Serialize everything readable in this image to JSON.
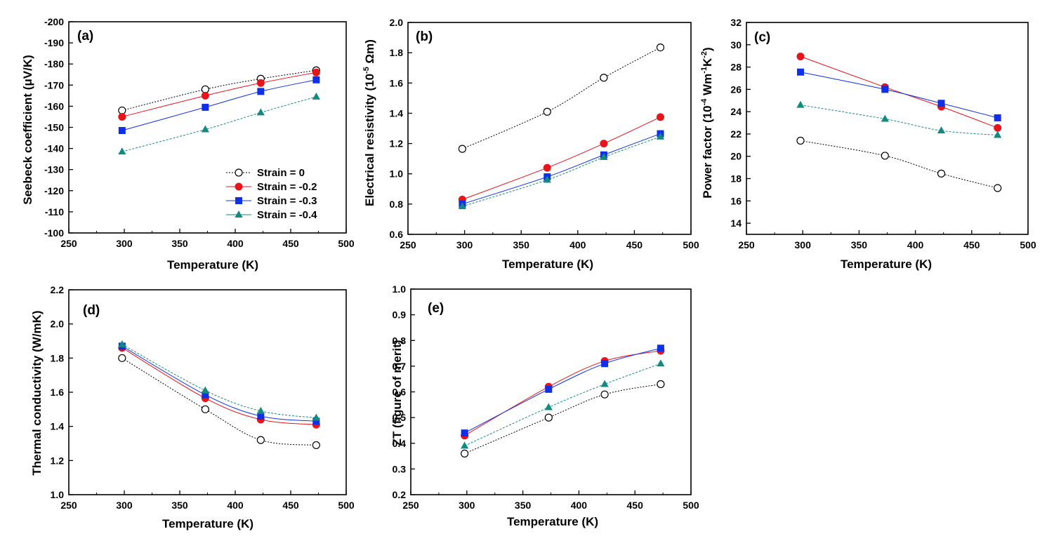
{
  "legend": {
    "series": [
      {
        "name": "Strain = 0",
        "color": "#000000",
        "marker": "circle-open"
      },
      {
        "name": "Strain = -0.2",
        "color": "#e8141b",
        "marker": "circle"
      },
      {
        "name": "Strain = -0.3",
        "color": "#1030e8",
        "marker": "square"
      },
      {
        "name": "Strain = -0.4",
        "color": "#138a80",
        "marker": "triangle"
      }
    ]
  },
  "chart_data": [
    {
      "panel": "(a)",
      "type": "line",
      "title": "",
      "xlabel": "Temperature (K)",
      "ylabel": "Seebeck coefficient (μV/K)",
      "xlim": [
        250,
        500
      ],
      "xticks": [
        250,
        300,
        350,
        400,
        450,
        500
      ],
      "ylim": [
        -100,
        -200
      ],
      "yticks": [
        -100,
        -110,
        -120,
        -130,
        -140,
        -150,
        -160,
        -170,
        -180,
        -190,
        -200
      ],
      "x": [
        298,
        373,
        423,
        473
      ],
      "series": [
        {
          "name": "Strain = 0",
          "values": [
            -158,
            -168,
            -173,
            -177
          ]
        },
        {
          "name": "Strain = -0.2",
          "values": [
            -155,
            -165,
            -171,
            -176
          ]
        },
        {
          "name": "Strain = -0.3",
          "values": [
            -148.5,
            -159.5,
            -167,
            -172.5
          ]
        },
        {
          "name": "Strain = -0.4",
          "values": [
            -138.5,
            -149,
            -157,
            -164.5
          ]
        }
      ]
    },
    {
      "panel": "(b)",
      "type": "line",
      "title": "",
      "xlabel": "Temperature (K)",
      "ylabel_main": "Electrical resistivity (10",
      "ylabel_sup": "-5",
      "ylabel_tail": " Ωm)",
      "xlim": [
        250,
        500
      ],
      "xticks": [
        250,
        300,
        350,
        400,
        450,
        500
      ],
      "ylim": [
        0.6,
        2.0
      ],
      "yticks": [
        "0.6",
        "0.8",
        "1.0",
        "1.2",
        "1.4",
        "1.6",
        "1.8",
        "2.0"
      ],
      "x": [
        298,
        373,
        423,
        473
      ],
      "series": [
        {
          "name": "Strain = 0",
          "values": [
            1.165,
            1.41,
            1.635,
            1.835
          ]
        },
        {
          "name": "Strain = -0.2",
          "values": [
            0.83,
            1.04,
            1.2,
            1.375
          ]
        },
        {
          "name": "Strain = -0.3",
          "values": [
            0.8,
            0.98,
            1.125,
            1.265
          ]
        },
        {
          "name": "Strain = -0.4",
          "values": [
            0.785,
            0.96,
            1.11,
            1.245
          ]
        }
      ]
    },
    {
      "panel": "(c)",
      "type": "line",
      "title": "",
      "xlabel": "Temperature (K)",
      "ylabel_main": "Power factor (10",
      "ylabel_sup1": "-4",
      "ylabel_mid": " Wm",
      "ylabel_sup2": "-1",
      "ylabel_mid2": "K",
      "ylabel_sup3": "-2",
      "ylabel_tail": ")",
      "xlim": [
        250,
        500
      ],
      "xticks": [
        250,
        300,
        350,
        400,
        450,
        500
      ],
      "ylim": [
        13,
        32
      ],
      "yticks": [
        14,
        16,
        18,
        20,
        22,
        24,
        26,
        28,
        30,
        32
      ],
      "x": [
        298,
        373,
        423,
        473
      ],
      "series": [
        {
          "name": "Strain = 0",
          "values": [
            21.4,
            20.05,
            18.45,
            17.15
          ]
        },
        {
          "name": "Strain = -0.2",
          "values": [
            28.95,
            26.2,
            24.45,
            22.55
          ]
        },
        {
          "name": "Strain = -0.3",
          "values": [
            27.55,
            26.0,
            24.75,
            23.45
          ]
        },
        {
          "name": "Strain = -0.4",
          "values": [
            24.6,
            23.35,
            22.3,
            21.9
          ]
        }
      ]
    },
    {
      "panel": "(d)",
      "type": "line",
      "title": "",
      "xlabel": "Temperature (K)",
      "ylabel": "Thermal conductivity (W/mK)",
      "xlim": [
        250,
        500
      ],
      "xticks": [
        250,
        300,
        350,
        400,
        450,
        500
      ],
      "ylim": [
        1.0,
        2.2
      ],
      "yticks": [
        "1.0",
        "1.2",
        "1.4",
        "1.6",
        "1.8",
        "2.0",
        "2.2"
      ],
      "x": [
        298,
        373,
        423,
        473
      ],
      "series": [
        {
          "name": "Strain = 0",
          "values": [
            1.8,
            1.5,
            1.32,
            1.29
          ]
        },
        {
          "name": "Strain = -0.2",
          "values": [
            1.86,
            1.565,
            1.44,
            1.41
          ]
        },
        {
          "name": "Strain = -0.3",
          "values": [
            1.87,
            1.585,
            1.46,
            1.43
          ]
        },
        {
          "name": "Strain = -0.4",
          "values": [
            1.88,
            1.61,
            1.49,
            1.45
          ]
        }
      ]
    },
    {
      "panel": "(e)",
      "type": "line",
      "title": "",
      "xlabel": "Temperature (K)",
      "ylabel": "ZT (figure of merit)",
      "xlim": [
        250,
        500
      ],
      "xticks": [
        250,
        300,
        350,
        400,
        450,
        500
      ],
      "ylim": [
        0.2,
        1.0
      ],
      "yticks": [
        "0.2",
        "0.3",
        "0.4",
        "0.5",
        "0.6",
        "0.7",
        "0.8",
        "0.9",
        "1.0"
      ],
      "x": [
        298,
        373,
        423,
        473
      ],
      "series": [
        {
          "name": "Strain = 0",
          "values": [
            0.36,
            0.5,
            0.59,
            0.63
          ]
        },
        {
          "name": "Strain = -0.2",
          "values": [
            0.43,
            0.62,
            0.72,
            0.76
          ]
        },
        {
          "name": "Strain = -0.3",
          "values": [
            0.44,
            0.61,
            0.71,
            0.77
          ]
        },
        {
          "name": "Strain = -0.4",
          "values": [
            0.39,
            0.54,
            0.63,
            0.71
          ]
        }
      ]
    }
  ]
}
